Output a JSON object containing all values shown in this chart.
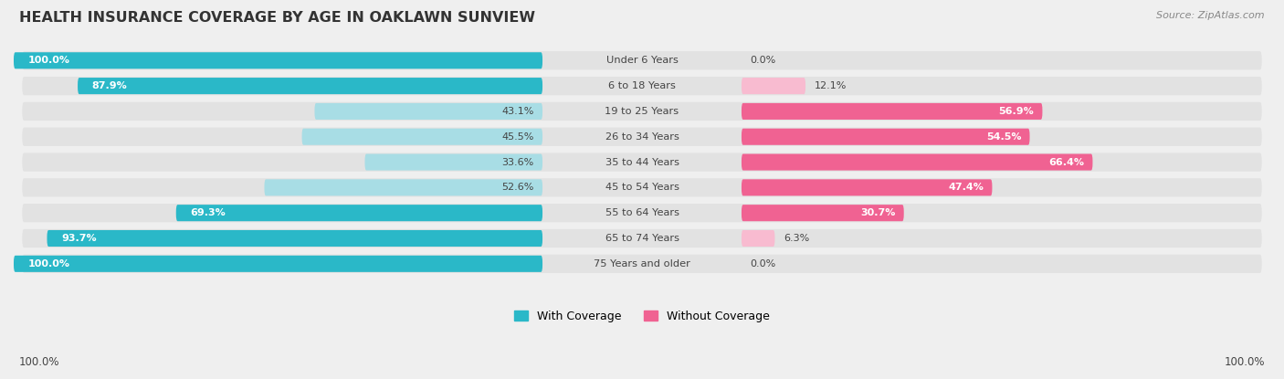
{
  "title": "HEALTH INSURANCE COVERAGE BY AGE IN OAKLAWN SUNVIEW",
  "source": "Source: ZipAtlas.com",
  "categories": [
    "Under 6 Years",
    "6 to 18 Years",
    "19 to 25 Years",
    "26 to 34 Years",
    "35 to 44 Years",
    "45 to 54 Years",
    "55 to 64 Years",
    "65 to 74 Years",
    "75 Years and older"
  ],
  "with_coverage": [
    100.0,
    87.9,
    43.1,
    45.5,
    33.6,
    52.6,
    69.3,
    93.7,
    100.0
  ],
  "without_coverage": [
    0.0,
    12.1,
    56.9,
    54.5,
    66.4,
    47.4,
    30.7,
    6.3,
    0.0
  ],
  "color_with_strong": "#2ab8c8",
  "color_with_light": "#a8dde5",
  "color_without_strong": "#f06292",
  "color_without_light": "#f8bbd0",
  "bg_color": "#efefef",
  "row_bg_color": "#e2e2e2",
  "title_color": "#333333",
  "source_color": "#888888",
  "label_color": "#444444",
  "white_label": "#ffffff",
  "with_thresh": 60.0,
  "without_thresh": 30.0
}
